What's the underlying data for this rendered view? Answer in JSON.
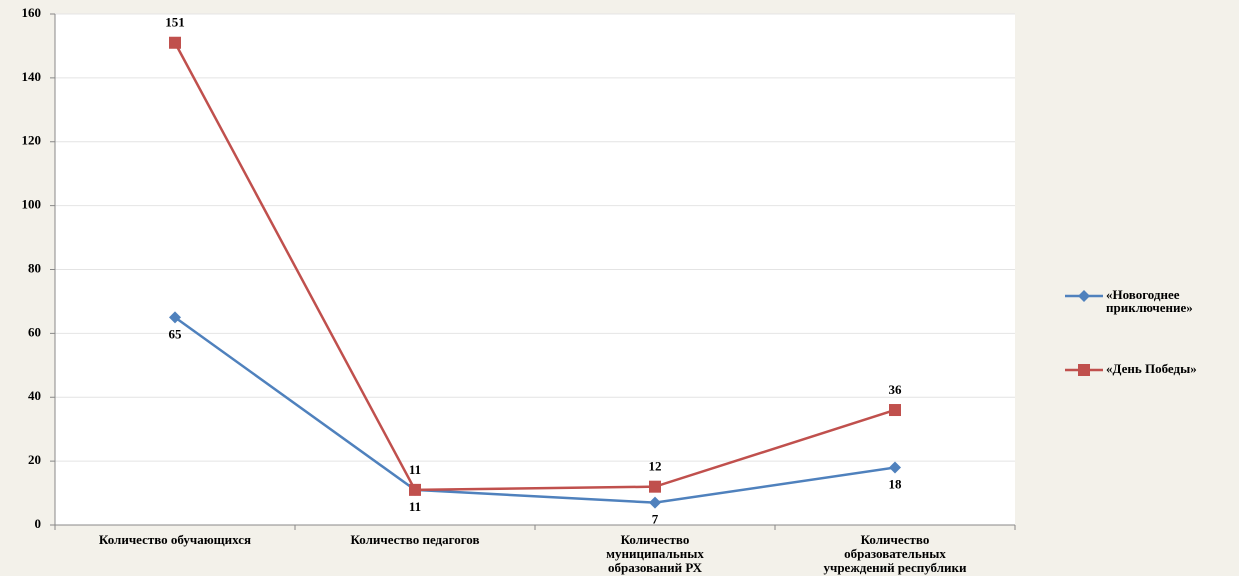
{
  "chart_data": {
    "type": "line",
    "categories": [
      "Количество обучающихся",
      "Количество педагогов",
      "Количество\nмуниципальных\nобразований РХ",
      "Количество\nобразовательных\nучреждений республики"
    ],
    "series": [
      {
        "name": "«Новогоднее\nприключение»",
        "color": "#4f81bd",
        "marker": "diamond",
        "values": [
          65,
          11,
          7,
          18
        ],
        "label_position": "below"
      },
      {
        "name": "«День Победы»",
        "color": "#c0504d",
        "marker": "square",
        "values": [
          151,
          11,
          12,
          36
        ],
        "label_position": "above"
      }
    ],
    "ylim": [
      0,
      160
    ],
    "yticks": [
      0,
      20,
      40,
      60,
      80,
      100,
      120,
      140,
      160
    ],
    "grid": true,
    "legend": "right"
  }
}
